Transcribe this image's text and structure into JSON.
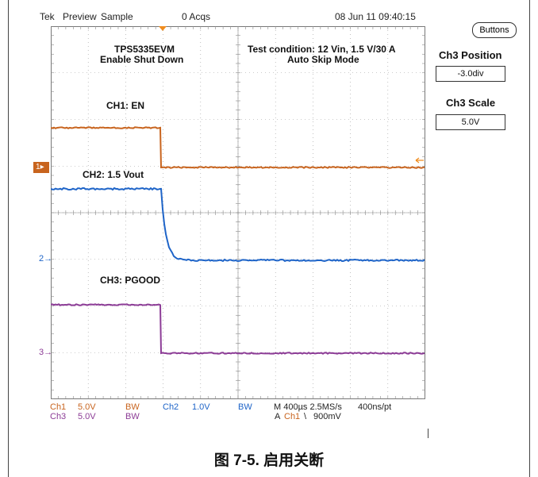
{
  "header": {
    "brand": "Tek",
    "mode": "Preview",
    "acq_mode": "Sample",
    "acqs": "0 Acqs",
    "timestamp": "08 Jun 11 09:40:15"
  },
  "annotations": {
    "board": "TPS5335EVM",
    "function": "Enable Shut Down",
    "test_line1": "Test condition: 12 Vin, 1.5 V/30 A",
    "test_line2": "Auto Skip Mode",
    "ch1_label": "CH1: EN",
    "ch2_label": "CH2: 1.5 Vout",
    "ch3_label": "CH3: PGOOD"
  },
  "channel_markers": {
    "ch1": "1",
    "ch2": "2",
    "ch3": "3"
  },
  "right_panel": {
    "buttons_label": "Buttons",
    "position_title": "Ch3 Position",
    "position_value": "-3.0div",
    "scale_title": "Ch3 Scale",
    "scale_value": "5.0V"
  },
  "bottom_readout": {
    "ch1": "Ch1",
    "ch1_scale": "5.0V",
    "ch1_bw": "BW",
    "ch2": "Ch2",
    "ch2_scale": "1.0V",
    "ch2_bw": "BW",
    "ch3": "Ch3",
    "ch3_scale": "5.0V",
    "ch3_bw": "BW",
    "timebase": "M 400µs 2.5MS/s",
    "record": "400ns/pt",
    "trigger_prefix": "A",
    "trigger_ch": "Ch1",
    "trigger_slope": "\\",
    "trigger_level": "900mV"
  },
  "caption": "图 7-5. 启用关断",
  "colors": {
    "ch1": "#c8641e",
    "ch2": "#1e64c8",
    "ch3": "#8c3c96",
    "grid": "#999999",
    "trigger": "#f08c1e"
  }
}
